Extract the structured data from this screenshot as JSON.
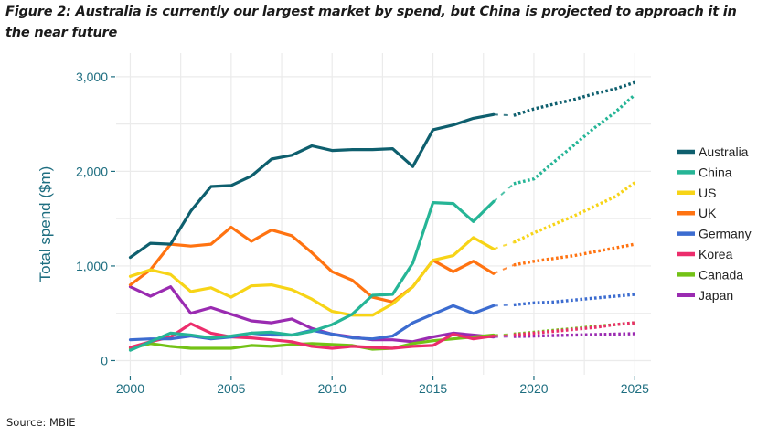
{
  "title": "Figure 2: Australia is currently our largest market by spend, but China is projected to approach it in the near future",
  "source": "Source: MBIE",
  "chart_data": {
    "type": "line",
    "title": "Figure 2: Australia is currently our largest market by spend, but China is projected to approach it in the near future",
    "xlabel": "",
    "ylabel": "Total spend ($m)",
    "xlim": [
      1999.3,
      2025.8
    ],
    "ylim": [
      -150,
      3250
    ],
    "x_ticks": [
      2000,
      2005,
      2010,
      2015,
      2020,
      2025
    ],
    "x_tick_labels": [
      "2000",
      "2005",
      "2010",
      "2015",
      "2020",
      "2025"
    ],
    "y_ticks": [
      0,
      1000,
      2000,
      3000
    ],
    "y_tick_labels": [
      "0",
      "1,000",
      "2,000",
      "3,000"
    ],
    "y_minor_grid": [
      500,
      1500,
      2500
    ],
    "grid": true,
    "legend_position": "right",
    "actual_x": [
      2000,
      2001,
      2002,
      2003,
      2004,
      2005,
      2006,
      2007,
      2008,
      2009,
      2010,
      2011,
      2012,
      2013,
      2014,
      2015,
      2016,
      2017,
      2018
    ],
    "projection_x": [
      2018,
      2019,
      2020,
      2021,
      2022,
      2023,
      2024,
      2025
    ],
    "projection_style": "dotted",
    "series": [
      {
        "name": "Australia",
        "color": "#0e5f6e",
        "values": [
          1090,
          1240,
          1230,
          1580,
          1840,
          1850,
          1950,
          2130,
          2170,
          2270,
          2220,
          2230,
          2230,
          2240,
          2050,
          2440,
          2490,
          2560,
          2600
        ],
        "projection": [
          2600,
          2590,
          2660,
          2710,
          2760,
          2820,
          2870,
          2940
        ]
      },
      {
        "name": "China",
        "color": "#26b596",
        "values": [
          110,
          200,
          290,
          270,
          240,
          260,
          290,
          300,
          270,
          310,
          380,
          490,
          690,
          700,
          1030,
          1670,
          1660,
          1470,
          1680
        ],
        "projection": [
          1680,
          1870,
          1920,
          2100,
          2280,
          2460,
          2620,
          2810
        ]
      },
      {
        "name": "US",
        "color": "#f7d417",
        "values": [
          890,
          960,
          910,
          730,
          770,
          670,
          790,
          800,
          750,
          650,
          520,
          480,
          480,
          600,
          780,
          1060,
          1110,
          1300,
          1180
        ],
        "projection": [
          1180,
          1250,
          1350,
          1440,
          1530,
          1630,
          1730,
          1880
        ]
      },
      {
        "name": "UK",
        "color": "#ff7311",
        "values": [
          800,
          960,
          1230,
          1210,
          1230,
          1410,
          1260,
          1380,
          1320,
          1140,
          940,
          850,
          670,
          620,
          780,
          1060,
          940,
          1050,
          920
        ],
        "projection": [
          920,
          1010,
          1050,
          1080,
          1110,
          1150,
          1190,
          1230
        ]
      },
      {
        "name": "Germany",
        "color": "#3c6cd0",
        "values": [
          220,
          230,
          230,
          260,
          230,
          250,
          290,
          270,
          270,
          320,
          280,
          240,
          230,
          260,
          400,
          490,
          580,
          500,
          580
        ],
        "projection": [
          580,
          590,
          610,
          620,
          640,
          660,
          680,
          700
        ]
      },
      {
        "name": "Korea",
        "color": "#ec2d6c",
        "values": [
          140,
          200,
          250,
          390,
          290,
          250,
          240,
          220,
          200,
          150,
          130,
          150,
          140,
          130,
          150,
          160,
          280,
          230,
          260
        ],
        "projection": [
          260,
          270,
          290,
          310,
          330,
          350,
          380,
          400
        ]
      },
      {
        "name": "Canada",
        "color": "#73c216",
        "values": [
          130,
          180,
          150,
          130,
          130,
          130,
          160,
          150,
          170,
          180,
          170,
          160,
          120,
          130,
          180,
          210,
          230,
          250,
          270
        ],
        "projection": [
          270,
          280,
          300,
          320,
          340,
          360,
          380,
          400
        ]
      },
      {
        "name": "Japan",
        "color": "#9a2bb1",
        "values": [
          780,
          680,
          780,
          500,
          560,
          490,
          420,
          400,
          440,
          340,
          280,
          250,
          220,
          220,
          200,
          250,
          290,
          270,
          250
        ],
        "projection": [
          250,
          255,
          260,
          265,
          270,
          275,
          280,
          285
        ]
      }
    ]
  }
}
